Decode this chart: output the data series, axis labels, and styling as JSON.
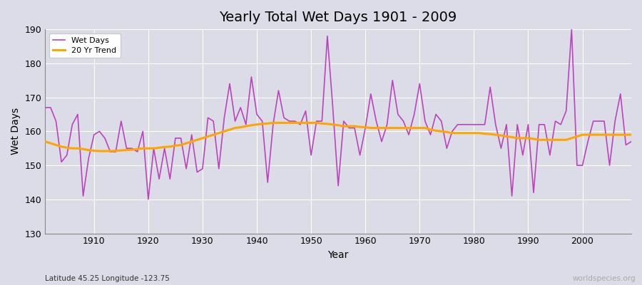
{
  "title": "Yearly Total Wet Days 1901 - 2009",
  "xlabel": "Year",
  "ylabel": "Wet Days",
  "subtitle": "Latitude 45.25 Longitude -123.75",
  "watermark": "worldspecies.org",
  "wet_days_color": "#BB44BB",
  "trend_color": "#FFA500",
  "bg_color": "#DCDCE8",
  "plot_bg_color": "#DCDCE8",
  "grid_color": "#FFFFFF",
  "ylim": [
    130,
    190
  ],
  "yticks": [
    130,
    140,
    150,
    160,
    170,
    180,
    190
  ],
  "xlim_min": 1901,
  "xlim_max": 2009,
  "years": [
    1901,
    1902,
    1903,
    1904,
    1905,
    1906,
    1907,
    1908,
    1909,
    1910,
    1911,
    1912,
    1913,
    1914,
    1915,
    1916,
    1917,
    1918,
    1919,
    1920,
    1921,
    1922,
    1923,
    1924,
    1925,
    1926,
    1927,
    1928,
    1929,
    1930,
    1931,
    1932,
    1933,
    1934,
    1935,
    1936,
    1937,
    1938,
    1939,
    1940,
    1941,
    1942,
    1943,
    1944,
    1945,
    1946,
    1947,
    1948,
    1949,
    1950,
    1951,
    1952,
    1953,
    1954,
    1955,
    1956,
    1957,
    1958,
    1959,
    1960,
    1961,
    1962,
    1963,
    1964,
    1965,
    1966,
    1967,
    1968,
    1969,
    1970,
    1971,
    1972,
    1973,
    1974,
    1975,
    1976,
    1977,
    1978,
    1979,
    1980,
    1981,
    1982,
    1983,
    1984,
    1985,
    1986,
    1987,
    1988,
    1989,
    1990,
    1991,
    1992,
    1993,
    1994,
    1995,
    1996,
    1997,
    1998,
    1999,
    2000,
    2001,
    2002,
    2003,
    2004,
    2005,
    2006,
    2007,
    2008,
    2009
  ],
  "wet_days": [
    167,
    167,
    163,
    151,
    153,
    162,
    165,
    141,
    152,
    159,
    160,
    158,
    154,
    154,
    163,
    155,
    155,
    154,
    160,
    140,
    155,
    146,
    155,
    146,
    158,
    158,
    149,
    159,
    148,
    149,
    164,
    163,
    149,
    164,
    174,
    163,
    167,
    162,
    176,
    165,
    163,
    145,
    162,
    172,
    164,
    163,
    163,
    162,
    166,
    153,
    163,
    163,
    188,
    167,
    144,
    163,
    161,
    161,
    153,
    161,
    171,
    163,
    157,
    162,
    175,
    165,
    163,
    159,
    165,
    174,
    163,
    159,
    165,
    163,
    155,
    160,
    162,
    162,
    162,
    162,
    162,
    162,
    173,
    162,
    155,
    162,
    141,
    162,
    153,
    162,
    142,
    162,
    162,
    153,
    163,
    162,
    166,
    190,
    150,
    150,
    157,
    163,
    163,
    163,
    150,
    163,
    171,
    156,
    157
  ],
  "trend_years": [
    1901,
    1902,
    1903,
    1904,
    1905,
    1906,
    1907,
    1908,
    1909,
    1910,
    1911,
    1912,
    1913,
    1914,
    1915,
    1916,
    1917,
    1918,
    1919,
    1920,
    1921,
    1922,
    1923,
    1924,
    1925,
    1926,
    1927,
    1928,
    1929,
    1930,
    1931,
    1932,
    1933,
    1934,
    1935,
    1936,
    1937,
    1938,
    1939,
    1940,
    1941,
    1942,
    1943,
    1944,
    1945,
    1946,
    1947,
    1948,
    1949,
    1950,
    1951,
    1952,
    1953,
    1954,
    1955,
    1956,
    1957,
    1958,
    1959,
    1960,
    1961,
    1962,
    1963,
    1964,
    1965,
    1966,
    1967,
    1968,
    1969,
    1970,
    1971,
    1972,
    1973,
    1974,
    1975,
    1976,
    1977,
    1978,
    1979,
    1980,
    1981,
    1982,
    1983,
    1984,
    1985,
    1986,
    1987,
    1988,
    1989,
    1990,
    1991,
    1992,
    1993,
    1994,
    1995,
    1996,
    1997,
    1998,
    1999,
    2000,
    2001,
    2002,
    2003,
    2004,
    2005,
    2006,
    2007,
    2008,
    2009
  ],
  "trend_values": [
    157.0,
    156.5,
    156.0,
    155.5,
    155.2,
    155.0,
    155.0,
    154.8,
    154.5,
    154.3,
    154.2,
    154.2,
    154.2,
    154.3,
    154.4,
    154.5,
    154.6,
    154.8,
    155.0,
    155.0,
    155.0,
    155.2,
    155.4,
    155.5,
    155.8,
    156.0,
    156.5,
    157.0,
    157.5,
    158.0,
    158.5,
    159.0,
    159.5,
    160.0,
    160.5,
    161.0,
    161.2,
    161.5,
    161.8,
    162.0,
    162.2,
    162.3,
    162.5,
    162.5,
    162.5,
    162.5,
    162.5,
    162.5,
    162.5,
    162.5,
    162.5,
    162.3,
    162.2,
    162.0,
    161.8,
    161.5,
    161.5,
    161.5,
    161.3,
    161.2,
    161.0,
    161.0,
    161.0,
    161.0,
    161.0,
    161.0,
    161.0,
    161.0,
    161.0,
    161.0,
    161.0,
    160.5,
    160.2,
    160.0,
    159.8,
    159.5,
    159.5,
    159.5,
    159.5,
    159.5,
    159.5,
    159.3,
    159.2,
    159.0,
    158.8,
    158.5,
    158.3,
    158.0,
    158.0,
    158.0,
    157.8,
    157.5,
    157.5,
    157.5,
    157.5,
    157.5,
    157.5,
    158.0,
    158.5,
    159.0,
    159.0,
    159.0,
    159.0,
    159.0,
    159.0,
    159.0,
    159.0,
    159.0,
    159.0
  ]
}
